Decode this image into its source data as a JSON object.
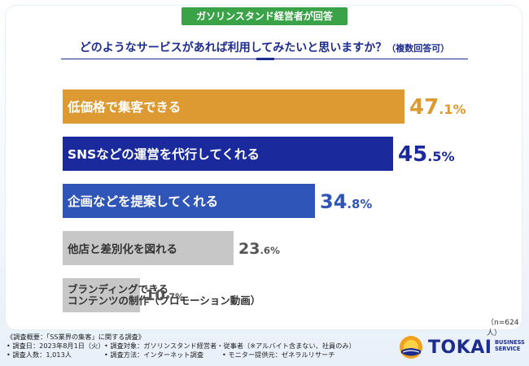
{
  "badge": "ガソリンスタンド経営者が回答",
  "question": {
    "main": "どのようなサービスがあれば利用してみたいと思いますか？",
    "sub": "（複数回答可）"
  },
  "colors": {
    "badge": "#3aa247",
    "question": "#1d2c8f",
    "bar_orange": "#dd9a33",
    "bar_navy": "#1a2a9c",
    "bar_blue": "#2f55b8",
    "bar_gray": "#c7c7c7"
  },
  "chart_data": {
    "type": "bar",
    "orientation": "horizontal",
    "xlim": [
      0,
      60
    ],
    "categories": [
      "低価格で集客できる",
      "SNSなどの運営を代行してくれる",
      "企画などを提案してくれる",
      "他店と差別化を図れる",
      "ブランディングできる\nコンテンツの制作（プロモーション動画）"
    ],
    "values": [
      47.1,
      45.5,
      34.8,
      23.6,
      10.7
    ],
    "value_labels": [
      {
        "int": "47",
        "dec": ".1%"
      },
      {
        "int": "45",
        "dec": ".5%"
      },
      {
        "int": "34",
        "dec": ".8%"
      },
      {
        "int": "23",
        "dec": ".6%"
      },
      {
        "int": "10",
        "dec": ".7%"
      }
    ],
    "bar_colors": [
      "#dd9a33",
      "#1a2a9c",
      "#2f55b8",
      "#c7c7c7",
      "#c7c7c7"
    ],
    "label_colors": [
      "#ffffff",
      "#ffffff",
      "#ffffff",
      "#333333",
      "#333333"
    ],
    "value_colors": [
      "#dd9a33",
      "#1a2a9c",
      "#2f55b8",
      "#555555",
      "#555555"
    ],
    "sample_note": "（n=624人）"
  },
  "footer": {
    "title": "《調査概要：「SS業界の集客」に関する調査》",
    "rows": [
      [
        "• 調査日：2023年8月1日（火）",
        "• 調査対象：ガソリンスタンド経営者・従事者（※アルバイト含まない、社員のみ）",
        ""
      ],
      [
        "• 調査人数：1,013人",
        "• 調査方法：インターネット調査",
        "• モニター提供元：ゼネラルリサーチ"
      ]
    ]
  },
  "logo": {
    "name": "TOKAI",
    "sub_line1": "BUSINESS",
    "sub_line2": "SERVICE"
  }
}
